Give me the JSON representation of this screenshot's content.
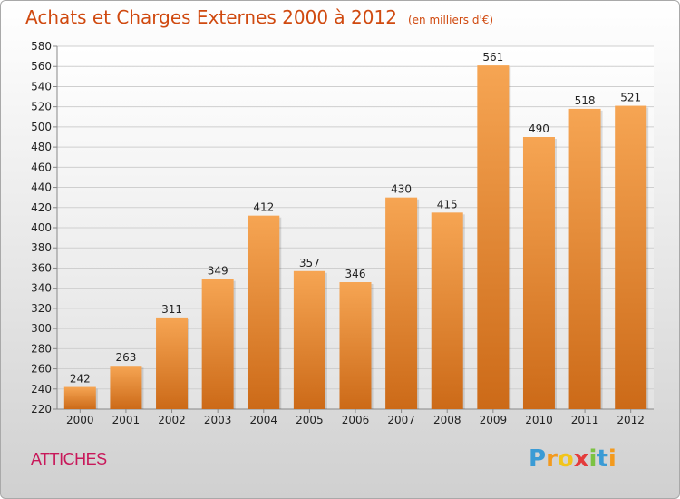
{
  "chart_data": {
    "type": "bar",
    "title": "Achats et Charges Externes 2000 à 2012",
    "unit_label": "(en milliers d'€)",
    "subtitle": "ATTICHES",
    "categories": [
      "2000",
      "2001",
      "2002",
      "2003",
      "2004",
      "2005",
      "2006",
      "2007",
      "2008",
      "2009",
      "2010",
      "2011",
      "2012"
    ],
    "values": [
      242,
      263,
      311,
      349,
      412,
      357,
      346,
      430,
      415,
      561,
      490,
      518,
      521
    ],
    "ylim": [
      220,
      580
    ],
    "yticks": [
      220,
      240,
      260,
      280,
      300,
      320,
      340,
      360,
      380,
      400,
      420,
      440,
      460,
      480,
      500,
      520,
      540,
      560,
      580
    ],
    "grid": true,
    "bar_color_top": "#f6a553",
    "bar_color_bottom": "#cc6a18"
  },
  "logo": {
    "letters": [
      "P",
      "r",
      "o",
      "x",
      "i",
      "t",
      "i"
    ],
    "colors": [
      "#3a9bd5",
      "#f39a1e",
      "#f2c51b",
      "#e43c3c",
      "#7cc243",
      "#3a9bd5",
      "#f39a1e"
    ]
  }
}
